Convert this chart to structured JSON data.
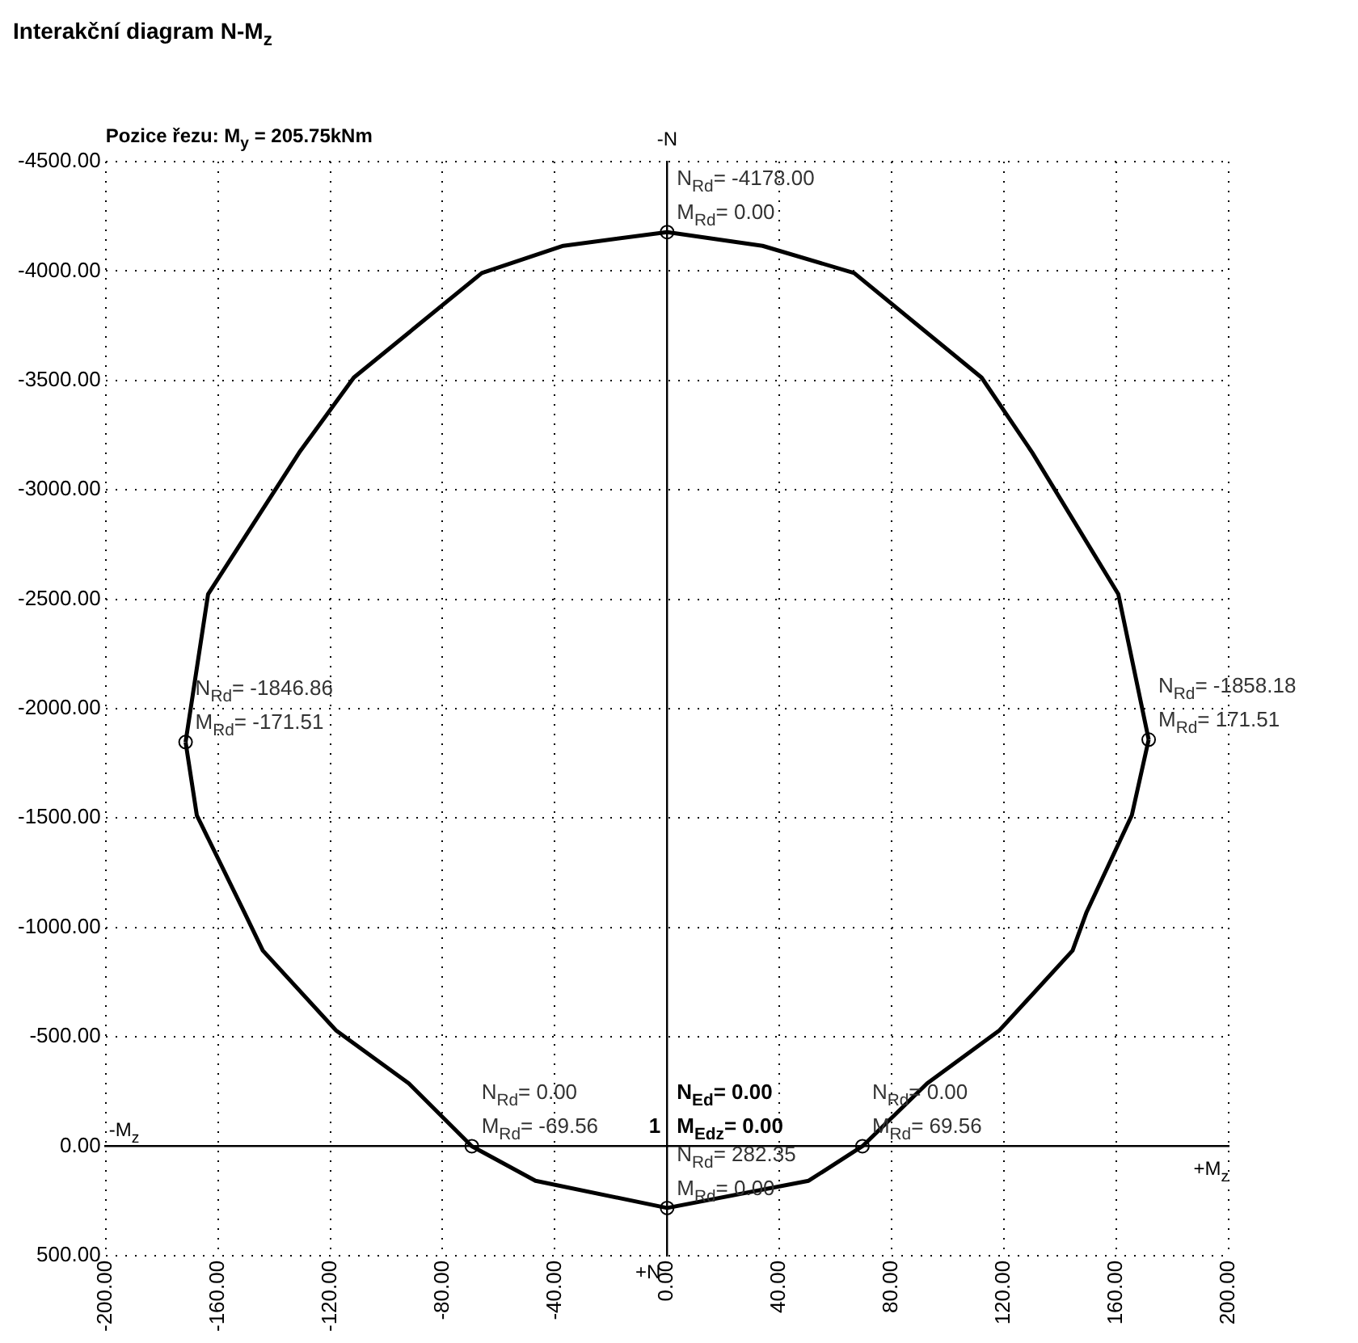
{
  "chart_data": {
    "type": "line",
    "title": "Interakční diagram N-M$_{z}$",
    "subtitle": "Pozice řezu: M$_{y}$ = 205.75kNm",
    "xlabel": "+M$_{z}$",
    "ylabel": "-N",
    "xlim": [
      -200,
      200
    ],
    "ylim": [
      500,
      -4500
    ],
    "xticks": [
      {
        "value": -200,
        "label": "-200.00"
      },
      {
        "value": -160,
        "label": "-160.00"
      },
      {
        "value": -120,
        "label": "-120.00"
      },
      {
        "value": -80,
        "label": "-80.00"
      },
      {
        "value": -40,
        "label": "-40.00"
      },
      {
        "value": 0,
        "label": "0.00"
      },
      {
        "value": 40,
        "label": "40.00"
      },
      {
        "value": 80,
        "label": "80.00"
      },
      {
        "value": 120,
        "label": "120.00"
      },
      {
        "value": 160,
        "label": "160.00"
      },
      {
        "value": 200,
        "label": "200.00"
      }
    ],
    "yticks": [
      {
        "value": -4500,
        "label": "-4500.00"
      },
      {
        "value": -4000,
        "label": "-4000.00"
      },
      {
        "value": -3500,
        "label": "-3500.00"
      },
      {
        "value": -3000,
        "label": "-3000.00"
      },
      {
        "value": -2500,
        "label": "-2500.00"
      },
      {
        "value": -2000,
        "label": "-2000.00"
      },
      {
        "value": -1500,
        "label": "-1500.00"
      },
      {
        "value": -1000,
        "label": "-1000.00"
      },
      {
        "value": -500,
        "label": "-500.00"
      },
      {
        "value": 0,
        "label": "0.00"
      },
      {
        "value": 500,
        "label": "500.00"
      }
    ],
    "series": [
      {
        "type": "line",
        "color": "#000000",
        "x": [
          0,
          34,
          66.6,
          112,
          130,
          160.7,
          171.51
        ],
        "values": [
          -4178,
          -4115,
          -3991,
          -3513,
          -3171,
          -2523,
          -1858.18
        ]
      },
      {
        "type": "line",
        "color": "#000000",
        "x": [
          0,
          50.4,
          69.56,
          92.6,
          118.4,
          144.4,
          149.3,
          165.5,
          171.51
        ],
        "values": [
          282.35,
          158,
          0,
          -287,
          -530,
          -894,
          -1067,
          -1512,
          -1858.18
        ]
      },
      {
        "type": "line",
        "color": "#000000",
        "x": [
          -171.51,
          -167.5,
          -150.5,
          -144,
          -118,
          -92,
          -69.56,
          -46.9,
          0
        ],
        "values": [
          -1846.86,
          -1512,
          -1067,
          -894,
          -530,
          -287,
          0,
          158,
          282.35
        ]
      },
      {
        "type": "line",
        "color": "#000000",
        "x": [
          -171.51,
          -163.5,
          -131,
          -111.6,
          -66,
          -37,
          0
        ],
        "values": [
          -1846.86,
          -2523,
          -3171,
          -3513,
          -3991,
          -4115,
          -4178
        ]
      },
      {
        "type": "scatter",
        "color": "#000000",
        "x": [
          0,
          171.51,
          69.56,
          0,
          -69.56,
          -171.51
        ],
        "values": [
          -4178,
          -1858.18,
          0,
          282.35,
          0,
          -1846.86
        ]
      }
    ],
    "grid": true,
    "legend": false,
    "annotations": [
      "-M$_{z}$",
      "+N",
      {
        "text": "N$_{Rd}$= -4178.00\nM$_{Rd}$= 0.00",
        "x": 0,
        "y": -4178
      },
      {
        "text": "N$_{Rd}$= -1846.86\nM$_{Rd}$= -171.51",
        "x": -171.51,
        "y": -1846.86
      },
      {
        "text": "N$_{Rd}$= -1858.18\nM$_{Rd}$= 171.51",
        "x": 171.51,
        "y": -1858.18
      },
      {
        "text": "N$_{Rd}$= 0.00\nM$_{Rd}$= -69.56",
        "x": -69.56,
        "y": 0
      },
      {
        "text": "N$_{Rd}$= 0.00\nM$_{Rd}$= 69.56",
        "x": 69.56,
        "y": 0
      },
      {
        "text": "N$_{Rd}$= 282.35\nM$_{Rd}$= 0.00",
        "x": 0,
        "y": 282.35
      },
      "N$_{Ed}$= 0.00\nM$_{Edz}$= 0.00",
      "1"
    ]
  }
}
